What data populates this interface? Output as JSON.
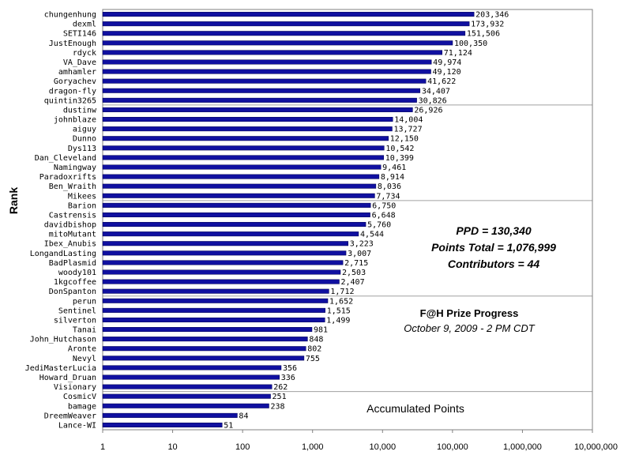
{
  "chart_data": {
    "type": "bar",
    "orientation": "horizontal",
    "x_scale": "log",
    "xlim": [
      1,
      10000000
    ],
    "x_ticks": [
      "1",
      "10",
      "100",
      "1,000",
      "10,000",
      "100,000",
      "1,000,000",
      "10,000,000"
    ],
    "xlabel": "Accumulated Points",
    "ylabel": "Rank",
    "title": "F@H Prize Progress",
    "subtitle": "October 9, 2009 - 2 PM CDT",
    "annotations": [
      "PPD = 130,340",
      "Points Total = 1,076,999",
      "Contributors = 44"
    ],
    "bar_color": "#1010a0",
    "grid": "horizontal",
    "categories": [
      "chungenhung",
      "dexml",
      "SETI146",
      "JustEnough",
      "rdyck",
      "VA_Dave",
      "amhamler",
      "Goryachev",
      "dragon-fly",
      "quintin3265",
      "dustinw",
      "johnblaze",
      "aiguy",
      "Dunno",
      "Dys113",
      "Dan_Cleveland",
      "Namingway",
      "Paradoxrifts",
      "Ben_Wraith",
      "Mikees",
      "Barion",
      "Castrensis",
      "davidbishop",
      "mitoMutant",
      "Ibex_Anubis",
      "LongandLasting",
      "BadPlasmid",
      "woody101",
      "1kgcoffee",
      "DonSpanton",
      "perun",
      "Sentinel",
      "silverton",
      "Tanai",
      "John_Hutchason",
      "Aronte",
      "Nevyl",
      "JediMasterLucia",
      "Howard_Druan",
      "Visionary",
      "CosmicV",
      "bamage",
      "DreemWeaver",
      "Lance-WI"
    ],
    "values": [
      203346,
      173932,
      151506,
      100350,
      71124,
      49974,
      49120,
      41622,
      34407,
      30826,
      26926,
      14004,
      13727,
      12150,
      10542,
      10399,
      9461,
      8914,
      8036,
      7734,
      6750,
      6648,
      5760,
      4544,
      3223,
      3007,
      2715,
      2503,
      2407,
      1712,
      1652,
      1515,
      1499,
      981,
      848,
      802,
      755,
      356,
      336,
      262,
      251,
      238,
      84,
      51
    ],
    "value_labels": [
      "203,346",
      "173,932",
      "151,506",
      "100,350",
      "71,124",
      "49,974",
      "49,120",
      "41,622",
      "34,407",
      "30,826",
      "26,926",
      "14,004",
      "13,727",
      "12,150",
      "10,542",
      "10,399",
      "9,461",
      "8,914",
      "8,036",
      "7,734",
      "6,750",
      "6,648",
      "5,760",
      "4,544",
      "3,223",
      "3,007",
      "2,715",
      "2,503",
      "2,407",
      "1,712",
      "1,652",
      "1,515",
      "1,499",
      "981",
      "848",
      "802",
      "755",
      "356",
      "336",
      "262",
      "251",
      "238",
      "84",
      "51"
    ]
  }
}
